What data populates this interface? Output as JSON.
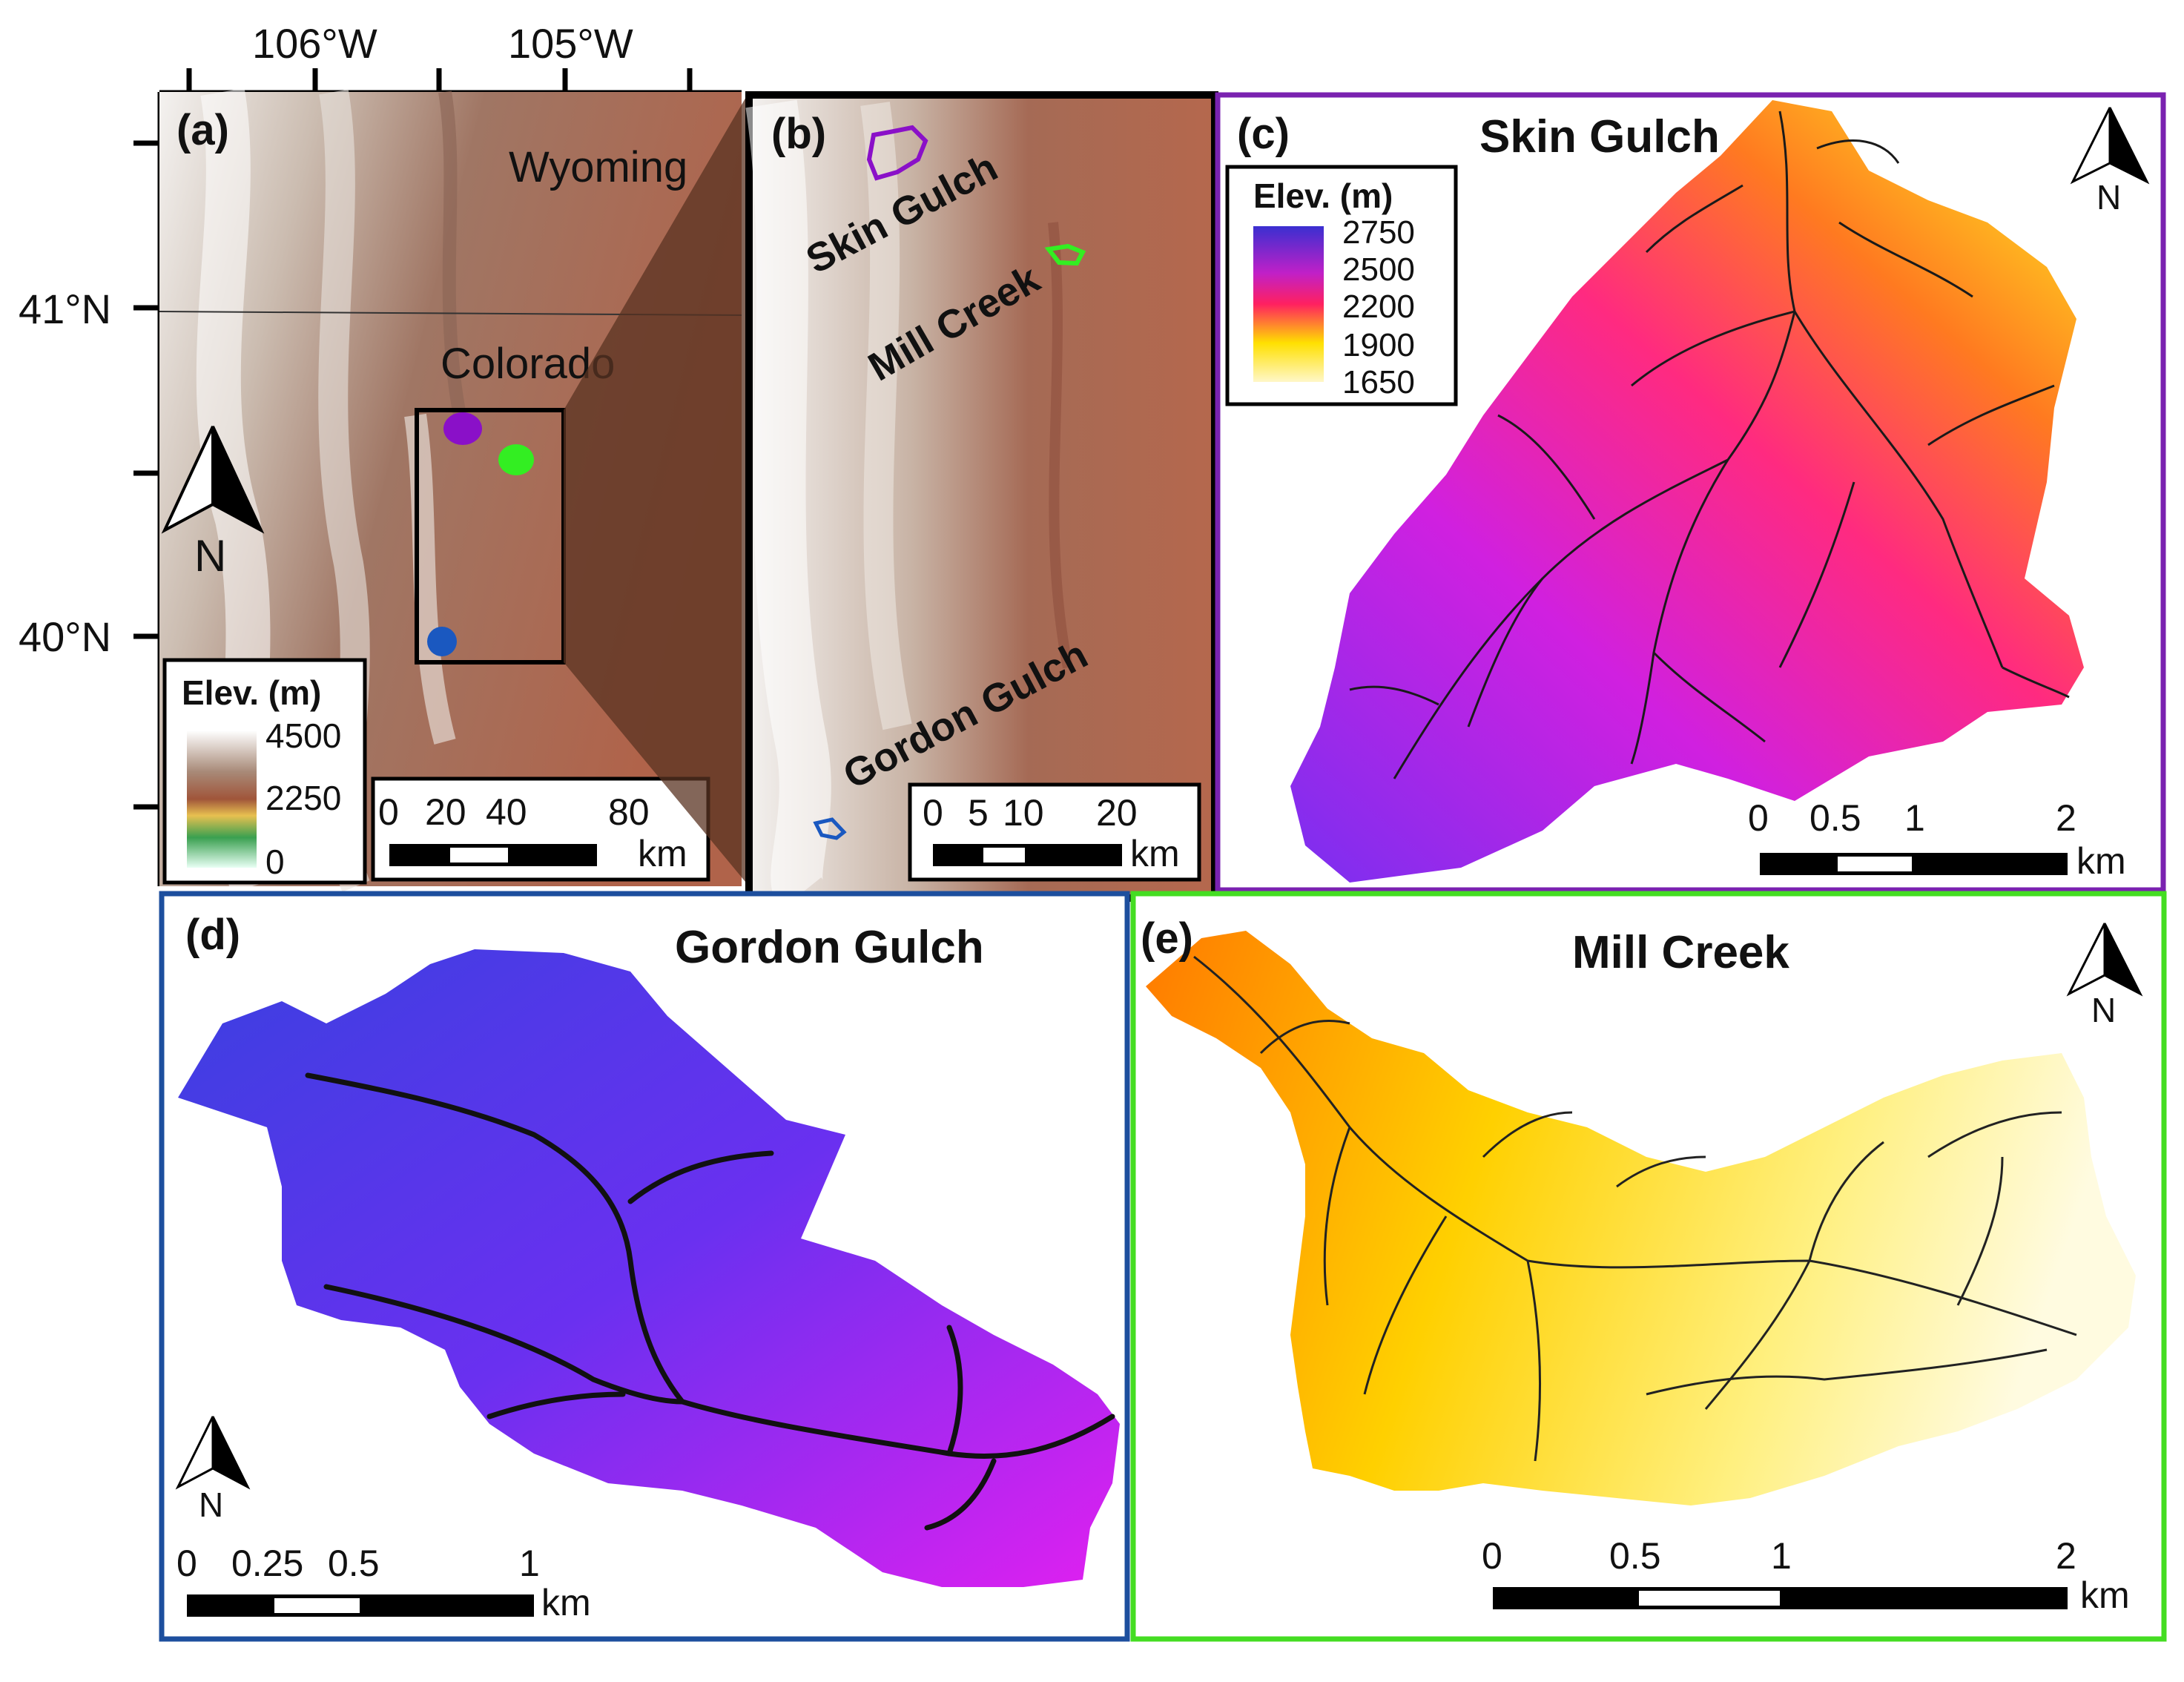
{
  "axes": {
    "lon_labels": [
      "106°W",
      "105°W"
    ],
    "lat_labels": [
      "41°N",
      "40°N"
    ]
  },
  "panel_a": {
    "letter": "(a)",
    "states": [
      "Wyoming",
      "Colorado"
    ],
    "north": "N",
    "legend": {
      "title": "Elev. (m)",
      "ticks": [
        "4500",
        "2250",
        "0"
      ]
    },
    "scale": {
      "ticks": [
        "0",
        "20",
        "40",
        "80"
      ],
      "unit": "km"
    },
    "sites": [
      {
        "name": "Skin Gulch",
        "color": "#8a10c8"
      },
      {
        "name": "Mill Creek",
        "color": "#33ee22"
      },
      {
        "name": "Gordon Gulch",
        "color": "#1a58c0"
      }
    ]
  },
  "panel_b": {
    "letter": "(b)",
    "labels": [
      "Skin Gulch",
      "Mill Creek",
      "Gordon Gulch"
    ],
    "scale": {
      "ticks": [
        "0",
        "5",
        "10",
        "20"
      ],
      "unit": "km"
    }
  },
  "panel_c": {
    "letter": "(c)",
    "title": "Skin Gulch",
    "north": "N",
    "frame_color": "#7a22b0",
    "legend": {
      "title": "Elev. (m)",
      "ticks": [
        "2750",
        "2500",
        "2200",
        "1900",
        "1650"
      ]
    },
    "scale": {
      "ticks": [
        "0",
        "0.5",
        "1",
        "2"
      ],
      "unit": "km"
    }
  },
  "panel_d": {
    "letter": "(d)",
    "title": "Gordon Gulch",
    "north": "N",
    "frame_color": "#1d4f9e",
    "scale": {
      "ticks": [
        "0",
        "0.25",
        "0.5",
        "1"
      ],
      "unit": "km"
    }
  },
  "panel_e": {
    "letter": "(e)",
    "title": "Mill Creek",
    "north": "N",
    "frame_color": "#44dd22",
    "scale": {
      "ticks": [
        "0",
        "0.5",
        "1",
        "2"
      ],
      "unit": "km"
    }
  }
}
